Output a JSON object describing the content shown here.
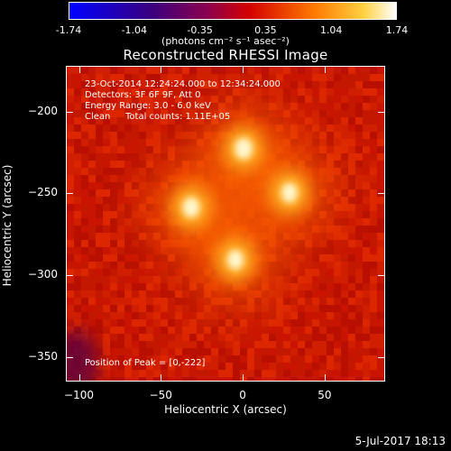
{
  "colorbar": {
    "ticks": [
      "-1.74",
      "-1.04",
      "-0.35",
      "0.35",
      "1.04",
      "1.74"
    ],
    "unit_label": "(photons cm⁻² s⁻¹ asec⁻²)"
  },
  "chart_data": {
    "type": "heatmap",
    "title": "Reconstructed RHESSI Image",
    "xlabel": "Heliocentric X (arcsec)",
    "ylabel": "Heliocentric Y (arcsec)",
    "xlim": [
      -108,
      87
    ],
    "ylim": [
      -365,
      -172
    ],
    "x_ticks": [
      -100,
      -50,
      0,
      50
    ],
    "y_ticks": [
      -200,
      -250,
      -300,
      -350
    ],
    "x_tick_labels": [
      "−100",
      "−50",
      "0",
      "50"
    ],
    "y_tick_labels": [
      "−200",
      "−250",
      "−300",
      "−350"
    ],
    "color_range": [
      -1.74,
      1.74
    ],
    "sources": [
      {
        "x": 0,
        "y": -222,
        "peak": 1.74
      },
      {
        "x": -32,
        "y": -258,
        "peak": 1.6
      },
      {
        "x": 28,
        "y": -249,
        "peak": 1.5
      },
      {
        "x": -5,
        "y": -290,
        "peak": 1.5
      }
    ],
    "annotations": {
      "line1": "23-Oct-2014 12:24:24.000 to 12:34:24.000",
      "line2": "Detectors: 3F 6F 9F, Att 0",
      "line3": "Energy Range: 3.0 - 6.0 keV",
      "line4_a": "Clean",
      "line4_b": "Total counts: 1.11E+05",
      "peak": "Position of Peak = [0,-222]"
    }
  },
  "date_stamp": "5-Jul-2017 18:13"
}
